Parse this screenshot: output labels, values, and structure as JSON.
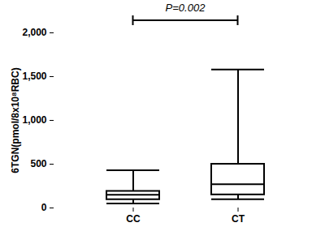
{
  "chart_data": {
    "type": "box",
    "categories": [
      "CC",
      "CT"
    ],
    "min": [
      50,
      100
    ],
    "q1": [
      95,
      150
    ],
    "median": [
      150,
      270
    ],
    "q3": [
      190,
      500
    ],
    "max": [
      430,
      1580
    ],
    "color": "#000000",
    "y_label": "6TGN(pmol/8x10⁸RBC)",
    "ylim": [
      0,
      2000
    ],
    "yticks": [
      0,
      500,
      1000,
      1500,
      2000
    ],
    "grid": false,
    "annotations": [
      {
        "text": "P=0.002",
        "from": "CC",
        "to": "CT"
      }
    ]
  }
}
